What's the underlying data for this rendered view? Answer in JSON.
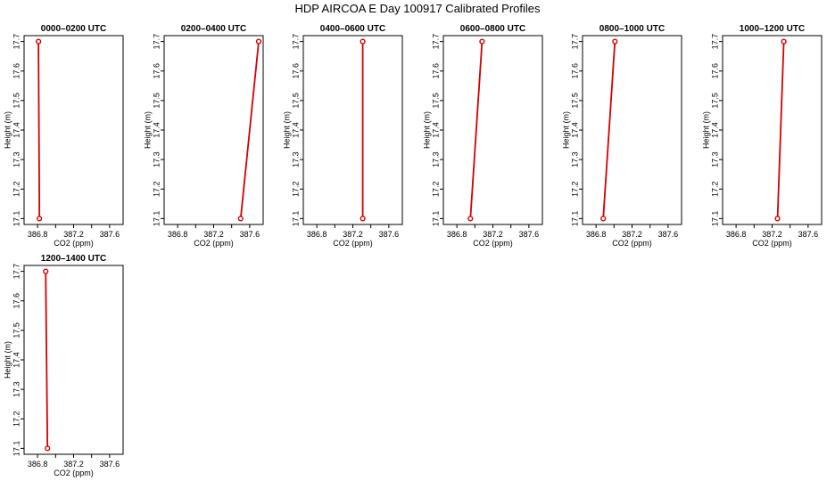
{
  "title": "HDP AIRCOA E  Day 100917  Calibrated Profiles",
  "colors": {
    "series": "#d40000",
    "axis": "#000000"
  },
  "chart_data": [
    {
      "type": "line",
      "title": "0000–0200 UTC",
      "xlabel": "CO2 (ppm)",
      "ylabel": "Height (m)",
      "xlim": [
        386.65,
        387.75
      ],
      "ylim": [
        17.08,
        17.72
      ],
      "xticks": [
        "386.8",
        "387.2",
        "387.6"
      ],
      "yticks": [
        "17.1",
        "17.2",
        "17.3",
        "17.4",
        "17.5",
        "17.6",
        "17.7"
      ],
      "grid": false,
      "points": [
        {
          "x": 386.82,
          "y": 17.1
        },
        {
          "x": 386.81,
          "y": 17.7
        }
      ]
    },
    {
      "type": "line",
      "title": "0200–0400 UTC",
      "xlabel": "CO2 (ppm)",
      "ylabel": "Height (m)",
      "xlim": [
        386.65,
        387.75
      ],
      "ylim": [
        17.08,
        17.72
      ],
      "xticks": [
        "386.8",
        "387.2",
        "387.6"
      ],
      "yticks": [
        "17.1",
        "17.2",
        "17.3",
        "17.4",
        "17.5",
        "17.6",
        "17.7"
      ],
      "grid": false,
      "points": [
        {
          "x": 387.5,
          "y": 17.1
        },
        {
          "x": 387.7,
          "y": 17.7
        }
      ]
    },
    {
      "type": "line",
      "title": "0400–0600 UTC",
      "xlabel": "CO2 (ppm)",
      "ylabel": "Height (m)",
      "xlim": [
        386.65,
        387.75
      ],
      "ylim": [
        17.08,
        17.72
      ],
      "xticks": [
        "386.8",
        "387.2",
        "387.6"
      ],
      "yticks": [
        "17.1",
        "17.2",
        "17.3",
        "17.4",
        "17.5",
        "17.6",
        "17.7"
      ],
      "grid": false,
      "points": [
        {
          "x": 387.31,
          "y": 17.1
        },
        {
          "x": 387.31,
          "y": 17.7
        }
      ]
    },
    {
      "type": "line",
      "title": "0600–0800 UTC",
      "xlabel": "CO2 (ppm)",
      "ylabel": "Height (m)",
      "xlim": [
        386.65,
        387.75
      ],
      "ylim": [
        17.08,
        17.72
      ],
      "xticks": [
        "386.8",
        "387.2",
        "387.6"
      ],
      "yticks": [
        "17.1",
        "17.2",
        "17.3",
        "17.4",
        "17.5",
        "17.6",
        "17.7"
      ],
      "grid": false,
      "points": [
        {
          "x": 386.95,
          "y": 17.1
        },
        {
          "x": 387.08,
          "y": 17.7
        }
      ]
    },
    {
      "type": "line",
      "title": "0800–1000 UTC",
      "xlabel": "CO2 (ppm)",
      "ylabel": "Height (m)",
      "xlim": [
        386.65,
        387.75
      ],
      "ylim": [
        17.08,
        17.72
      ],
      "xticks": [
        "386.8",
        "387.2",
        "387.6"
      ],
      "yticks": [
        "17.1",
        "17.2",
        "17.3",
        "17.4",
        "17.5",
        "17.6",
        "17.7"
      ],
      "grid": false,
      "points": [
        {
          "x": 386.88,
          "y": 17.1
        },
        {
          "x": 387.01,
          "y": 17.7
        }
      ]
    },
    {
      "type": "line",
      "title": "1000–1200 UTC",
      "xlabel": "CO2 (ppm)",
      "ylabel": "Height (m)",
      "xlim": [
        386.65,
        387.75
      ],
      "ylim": [
        17.08,
        17.72
      ],
      "xticks": [
        "386.8",
        "387.2",
        "387.6"
      ],
      "yticks": [
        "17.1",
        "17.2",
        "17.3",
        "17.4",
        "17.5",
        "17.6",
        "17.7"
      ],
      "grid": false,
      "points": [
        {
          "x": 387.26,
          "y": 17.1
        },
        {
          "x": 387.33,
          "y": 17.7
        }
      ]
    },
    {
      "type": "line",
      "title": "1200–1400 UTC",
      "xlabel": "CO2 (ppm)",
      "ylabel": "Height (m)",
      "xlim": [
        386.65,
        387.75
      ],
      "ylim": [
        17.08,
        17.72
      ],
      "xticks": [
        "386.8",
        "387.2",
        "387.6"
      ],
      "yticks": [
        "17.1",
        "17.2",
        "17.3",
        "17.4",
        "17.5",
        "17.6",
        "17.7"
      ],
      "grid": false,
      "points": [
        {
          "x": 386.91,
          "y": 17.1
        },
        {
          "x": 386.89,
          "y": 17.7
        }
      ]
    }
  ]
}
